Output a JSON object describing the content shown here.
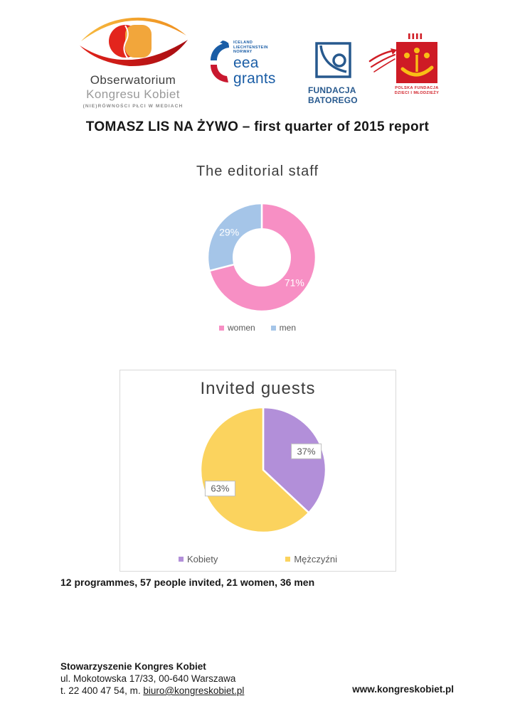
{
  "page": {
    "title": "TOMASZ LIS NA ŻYWO –  first quarter of 2015 report"
  },
  "logos": {
    "obserwatorium": {
      "line1": "Obserwatorium",
      "line2": "Kongresu Kobiet",
      "line3": "(NIE)RÓWNOŚCI PŁCI W MEDIACH"
    },
    "eea": {
      "countries": [
        "ICELAND",
        "LIECHTENSTEIN",
        "NORWAY"
      ],
      "word1": "eea",
      "word2": "grants"
    },
    "batory": {
      "line1": "FUNDACJA",
      "line2": "BATOREGO"
    },
    "pfdim": {
      "line1": "POLSKA FUNDACJA",
      "line2": "DZIECI I MŁODZIEŻY"
    }
  },
  "chart_data": [
    {
      "type": "pie",
      "subtype": "donut",
      "title": "The editorial staff",
      "categories": [
        "women",
        "men"
      ],
      "values": [
        71,
        29
      ],
      "labels": [
        "71%",
        "29%"
      ],
      "colors": [
        "#f78fc4",
        "#a5c5e8"
      ],
      "label_style": "white-text-inside",
      "legend_position": "bottom"
    },
    {
      "type": "pie",
      "subtype": "pie",
      "title": "Invited guests",
      "categories": [
        "Kobiety",
        "Mężczyźni"
      ],
      "values": [
        37,
        63
      ],
      "labels": [
        "37%",
        "63%"
      ],
      "colors": [
        "#b28fd9",
        "#fbd35e"
      ],
      "label_style": "boxed",
      "legend_position": "bottom"
    }
  ],
  "caption": "12 programmes, 57 people invited, 21 women, 36 men",
  "footer": {
    "org": "Stowarzyszenie Kongres Kobiet",
    "address": "ul. Mokotowska 17/33, 00-640 Warszawa",
    "phone_prefix": "t. 22 400 47 54, m. ",
    "email": "biuro@kongreskobiet.pl",
    "website": "www.kongreskobiet.pl"
  },
  "colors": {
    "chart_box_border": "#d9d9d9",
    "label_box_border": "#bfbfbf",
    "legend_text": "#595959"
  }
}
